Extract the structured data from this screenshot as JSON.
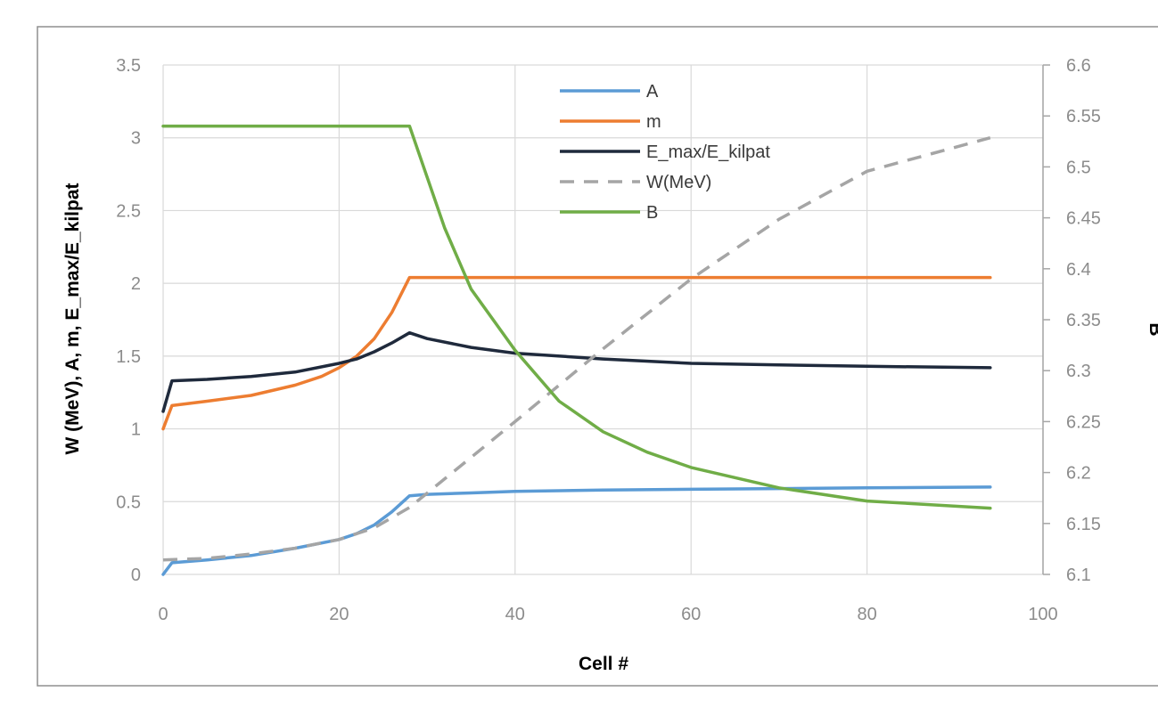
{
  "chart_data": {
    "type": "line",
    "title": "",
    "xlabel": "Cell #",
    "ylabel_left": "W (MeV), A, m, E_max/E_kilpat",
    "ylabel_right": "B",
    "xlim": [
      0,
      100
    ],
    "ylim_left": [
      0,
      3.5
    ],
    "ylim_right": [
      6.1,
      6.6
    ],
    "x_ticks": [
      "0",
      "20",
      "40",
      "60",
      "80",
      "100"
    ],
    "y_left_ticks": [
      "0",
      "0.5",
      "1",
      "1.5",
      "2",
      "2.5",
      "3",
      "3.5"
    ],
    "y_right_ticks": [
      "6.1",
      "6.15",
      "6.2",
      "6.25",
      "6.3",
      "6.35",
      "6.4",
      "6.45",
      "6.5",
      "6.55",
      "6.6"
    ],
    "grid": true,
    "legend_position": "top-center",
    "series": [
      {
        "name": "A",
        "color": "#5b9bd5",
        "dash": "solid",
        "axis": "left",
        "x": [
          0,
          1,
          5,
          10,
          15,
          20,
          22,
          24,
          26,
          28,
          30,
          35,
          40,
          50,
          60,
          70,
          80,
          94
        ],
        "y": [
          0,
          0.08,
          0.1,
          0.13,
          0.18,
          0.24,
          0.28,
          0.34,
          0.43,
          0.54,
          0.55,
          0.56,
          0.57,
          0.58,
          0.585,
          0.59,
          0.595,
          0.6
        ]
      },
      {
        "name": "m",
        "color": "#ed7d31",
        "dash": "solid",
        "axis": "left",
        "x": [
          0,
          1,
          5,
          10,
          15,
          18,
          20,
          22,
          24,
          26,
          28,
          40,
          60,
          80,
          94
        ],
        "y": [
          1.0,
          1.16,
          1.19,
          1.23,
          1.3,
          1.36,
          1.42,
          1.5,
          1.62,
          1.8,
          2.04,
          2.04,
          2.04,
          2.04,
          2.04
        ]
      },
      {
        "name": "E_max/E_kilpat",
        "color": "#1f2a3c",
        "dash": "solid",
        "axis": "left",
        "x": [
          0,
          1,
          5,
          10,
          15,
          20,
          22,
          24,
          26,
          28,
          30,
          35,
          40,
          50,
          60,
          70,
          80,
          94
        ],
        "y": [
          1.12,
          1.33,
          1.34,
          1.36,
          1.39,
          1.45,
          1.48,
          1.53,
          1.59,
          1.66,
          1.62,
          1.56,
          1.52,
          1.48,
          1.45,
          1.44,
          1.43,
          1.42
        ]
      },
      {
        "name": "W(MeV)",
        "color": "#a5a5a5",
        "dash": "dashed",
        "axis": "left",
        "x": [
          0,
          5,
          10,
          15,
          20,
          24,
          28,
          40,
          50,
          60,
          70,
          80,
          94
        ],
        "y": [
          0.1,
          0.11,
          0.14,
          0.18,
          0.24,
          0.32,
          0.46,
          1.05,
          1.55,
          2.03,
          2.44,
          2.77,
          3.0
        ]
      },
      {
        "name": "B",
        "color": "#70ad47",
        "dash": "solid",
        "axis": "right",
        "x": [
          0,
          10,
          20,
          28,
          30,
          32,
          35,
          40,
          45,
          50,
          55,
          60,
          70,
          80,
          94
        ],
        "y": [
          6.54,
          6.54,
          6.54,
          6.54,
          6.49,
          6.44,
          6.38,
          6.32,
          6.27,
          6.24,
          6.22,
          6.205,
          6.185,
          6.172,
          6.165
        ]
      }
    ]
  }
}
